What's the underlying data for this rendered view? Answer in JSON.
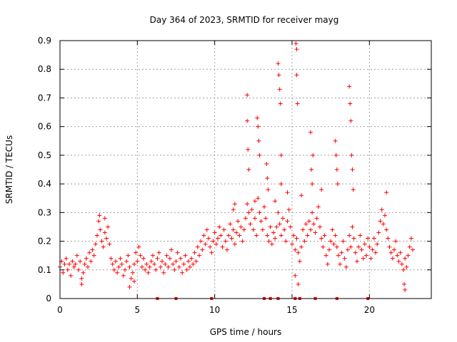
{
  "chart_data": {
    "type": "scatter",
    "title": "Day 364 of 2023, SRMTID for receiver mayg",
    "xlabel": "GPS time / hours",
    "ylabel": "SRMTID / TECUs",
    "xlim": [
      0,
      24
    ],
    "ylim": [
      0,
      0.9
    ],
    "x_ticks": [
      0,
      5,
      10,
      15,
      20
    ],
    "y_ticks": [
      0,
      0.1,
      0.2,
      0.3,
      0.4,
      0.5,
      0.6,
      0.7,
      0.8,
      0.9
    ],
    "x_tick_labels": [
      "0",
      "5",
      "10",
      "15",
      "20"
    ],
    "y_tick_labels": [
      "0",
      "0.1",
      "0.2",
      "0.3",
      "0.4",
      "0.5",
      "0.6",
      "0.7",
      "0.8",
      "0.9"
    ],
    "grid": true,
    "marker": "+",
    "color": "#ff0000",
    "baseline_markers_x": [
      6.3,
      7.5,
      9.8,
      13.2,
      13.6,
      14.1,
      15.2,
      15.5,
      16.5,
      17.9,
      19.9
    ],
    "series": [
      {
        "name": "SRMTID",
        "points": [
          [
            0.0,
            0.11
          ],
          [
            0.1,
            0.13
          ],
          [
            0.2,
            0.09
          ],
          [
            0.3,
            0.12
          ],
          [
            0.4,
            0.14
          ],
          [
            0.5,
            0.1
          ],
          [
            0.6,
            0.12
          ],
          [
            0.7,
            0.08
          ],
          [
            0.8,
            0.13
          ],
          [
            0.9,
            0.11
          ],
          [
            1.0,
            0.12
          ],
          [
            1.1,
            0.15
          ],
          [
            1.2,
            0.1
          ],
          [
            1.3,
            0.13
          ],
          [
            1.4,
            0.07
          ],
          [
            1.5,
            0.09
          ],
          [
            1.6,
            0.12
          ],
          [
            1.7,
            0.14
          ],
          [
            1.8,
            0.11
          ],
          [
            1.9,
            0.16
          ],
          [
            2.0,
            0.13
          ],
          [
            2.1,
            0.17
          ],
          [
            2.2,
            0.15
          ],
          [
            2.3,
            0.19
          ],
          [
            2.4,
            0.22
          ],
          [
            2.5,
            0.27
          ],
          [
            2.6,
            0.24
          ],
          [
            2.7,
            0.2
          ],
          [
            2.8,
            0.18
          ],
          [
            2.9,
            0.23
          ],
          [
            3.0,
            0.21
          ],
          [
            3.1,
            0.25
          ],
          [
            3.2,
            0.19
          ],
          [
            3.3,
            0.14
          ],
          [
            3.4,
            0.12
          ],
          [
            3.5,
            0.1
          ],
          [
            3.6,
            0.13
          ],
          [
            3.7,
            0.09
          ],
          [
            3.8,
            0.11
          ],
          [
            3.9,
            0.14
          ],
          [
            4.0,
            0.12
          ],
          [
            4.1,
            0.08
          ],
          [
            4.2,
            0.1
          ],
          [
            4.3,
            0.13
          ],
          [
            4.4,
            0.15
          ],
          [
            4.5,
            0.11
          ],
          [
            4.6,
            0.07
          ],
          [
            4.7,
            0.09
          ],
          [
            4.8,
            0.12
          ],
          [
            4.9,
            0.16
          ],
          [
            5.0,
            0.13
          ],
          [
            5.1,
            0.18
          ],
          [
            5.2,
            0.15
          ],
          [
            5.3,
            0.11
          ],
          [
            5.4,
            0.14
          ],
          [
            5.5,
            0.1
          ],
          [
            5.6,
            0.12
          ],
          [
            5.7,
            0.09
          ],
          [
            5.8,
            0.11
          ],
          [
            5.9,
            0.13
          ],
          [
            6.0,
            0.15
          ],
          [
            6.1,
            0.12
          ],
          [
            6.2,
            0.1
          ],
          [
            6.3,
            0.14
          ],
          [
            6.4,
            0.16
          ],
          [
            6.5,
            0.11
          ],
          [
            6.6,
            0.13
          ],
          [
            6.7,
            0.09
          ],
          [
            6.8,
            0.12
          ],
          [
            6.9,
            0.15
          ],
          [
            7.0,
            0.11
          ],
          [
            7.1,
            0.14
          ],
          [
            7.2,
            0.17
          ],
          [
            7.3,
            0.12
          ],
          [
            7.4,
            0.1
          ],
          [
            7.5,
            0.13
          ],
          [
            7.6,
            0.16
          ],
          [
            7.7,
            0.11
          ],
          [
            7.8,
            0.14
          ],
          [
            7.9,
            0.09
          ],
          [
            8.0,
            0.12
          ],
          [
            8.1,
            0.15
          ],
          [
            8.2,
            0.1
          ],
          [
            8.3,
            0.13
          ],
          [
            8.4,
            0.11
          ],
          [
            8.5,
            0.14
          ],
          [
            8.6,
            0.12
          ],
          [
            8.7,
            0.16
          ],
          [
            8.8,
            0.13
          ],
          [
            8.9,
            0.18
          ],
          [
            9.0,
            0.15
          ],
          [
            9.1,
            0.2
          ],
          [
            9.2,
            0.17
          ],
          [
            9.3,
            0.22
          ],
          [
            9.4,
            0.19
          ],
          [
            9.5,
            0.24
          ],
          [
            9.6,
            0.21
          ],
          [
            9.7,
            0.18
          ],
          [
            9.8,
            0.16
          ],
          [
            9.9,
            0.2
          ],
          [
            10.0,
            0.23
          ],
          [
            10.1,
            0.19
          ],
          [
            10.2,
            0.21
          ],
          [
            10.3,
            0.25
          ],
          [
            10.4,
            0.22
          ],
          [
            10.5,
            0.18
          ],
          [
            10.6,
            0.24
          ],
          [
            10.7,
            0.2
          ],
          [
            10.8,
            0.17
          ],
          [
            10.9,
            0.22
          ],
          [
            11.0,
            0.26
          ],
          [
            11.1,
            0.21
          ],
          [
            11.2,
            0.24
          ],
          [
            11.3,
            0.19
          ],
          [
            11.4,
            0.23
          ],
          [
            11.5,
            0.27
          ],
          [
            11.6,
            0.22
          ],
          [
            11.7,
            0.25
          ],
          [
            11.8,
            0.2
          ],
          [
            11.9,
            0.24
          ],
          [
            12.0,
            0.28
          ],
          [
            12.1,
            0.33
          ],
          [
            12.2,
            0.3
          ],
          [
            12.3,
            0.26
          ],
          [
            12.4,
            0.31
          ],
          [
            12.5,
            0.24
          ],
          [
            12.6,
            0.28
          ],
          [
            12.7,
            0.22
          ],
          [
            12.8,
            0.35
          ],
          [
            12.9,
            0.3
          ],
          [
            13.0,
            0.27
          ],
          [
            13.1,
            0.24
          ],
          [
            13.2,
            0.32
          ],
          [
            13.3,
            0.28
          ],
          [
            13.4,
            0.22
          ],
          [
            13.5,
            0.2
          ],
          [
            13.6,
            0.25
          ],
          [
            13.7,
            0.19
          ],
          [
            13.8,
            0.23
          ],
          [
            13.9,
            0.21
          ],
          [
            14.0,
            0.25
          ],
          [
            14.1,
            0.3
          ],
          [
            14.2,
            0.26
          ],
          [
            14.3,
            0.22
          ],
          [
            14.4,
            0.28
          ],
          [
            14.5,
            0.24
          ],
          [
            14.6,
            0.2
          ],
          [
            14.7,
            0.27
          ],
          [
            14.8,
            0.31
          ],
          [
            14.9,
            0.25
          ],
          [
            15.0,
            0.19
          ],
          [
            15.1,
            0.22
          ],
          [
            15.2,
            0.17
          ],
          [
            15.3,
            0.21
          ],
          [
            15.4,
            0.16
          ],
          [
            15.5,
            0.13
          ],
          [
            15.6,
            0.18
          ],
          [
            15.7,
            0.24
          ],
          [
            15.8,
            0.2
          ],
          [
            15.9,
            0.26
          ],
          [
            16.0,
            0.22
          ],
          [
            16.1,
            0.27
          ],
          [
            16.2,
            0.24
          ],
          [
            16.3,
            0.3
          ],
          [
            16.4,
            0.26
          ],
          [
            16.5,
            0.23
          ],
          [
            16.6,
            0.28
          ],
          [
            16.7,
            0.32
          ],
          [
            16.8,
            0.25
          ],
          [
            16.9,
            0.21
          ],
          [
            17.0,
            0.18
          ],
          [
            17.1,
            0.22
          ],
          [
            17.2,
            0.15
          ],
          [
            17.3,
            0.12
          ],
          [
            17.4,
            0.17
          ],
          [
            17.5,
            0.2
          ],
          [
            17.6,
            0.24
          ],
          [
            17.7,
            0.19
          ],
          [
            17.8,
            0.22
          ],
          [
            17.9,
            0.18
          ],
          [
            18.0,
            0.15
          ],
          [
            18.1,
            0.12
          ],
          [
            18.2,
            0.16
          ],
          [
            18.3,
            0.2
          ],
          [
            18.4,
            0.14
          ],
          [
            18.5,
            0.11
          ],
          [
            18.6,
            0.17
          ],
          [
            18.7,
            0.22
          ],
          [
            18.8,
            0.18
          ],
          [
            18.9,
            0.25
          ],
          [
            19.0,
            0.21
          ],
          [
            19.1,
            0.16
          ],
          [
            19.2,
            0.13
          ],
          [
            19.3,
            0.18
          ],
          [
            19.4,
            0.22
          ],
          [
            19.5,
            0.17
          ],
          [
            19.6,
            0.14
          ],
          [
            19.7,
            0.19
          ],
          [
            19.8,
            0.15
          ],
          [
            19.9,
            0.21
          ],
          [
            20.0,
            0.18
          ],
          [
            20.1,
            0.14
          ],
          [
            20.2,
            0.17
          ],
          [
            20.3,
            0.21
          ],
          [
            20.4,
            0.16
          ],
          [
            20.5,
            0.19
          ],
          [
            20.6,
            0.23
          ],
          [
            20.7,
            0.27
          ],
          [
            20.8,
            0.31
          ],
          [
            20.9,
            0.26
          ],
          [
            21.0,
            0.29
          ],
          [
            21.1,
            0.24
          ],
          [
            21.2,
            0.21
          ],
          [
            21.3,
            0.18
          ],
          [
            21.4,
            0.16
          ],
          [
            21.5,
            0.14
          ],
          [
            21.6,
            0.17
          ],
          [
            21.7,
            0.2
          ],
          [
            21.8,
            0.15
          ],
          [
            21.9,
            0.13
          ],
          [
            22.0,
            0.16
          ],
          [
            22.1,
            0.12
          ],
          [
            22.2,
            0.1
          ],
          [
            22.3,
            0.14
          ],
          [
            22.4,
            0.11
          ],
          [
            22.5,
            0.15
          ],
          [
            22.6,
            0.18
          ],
          [
            22.7,
            0.21
          ],
          [
            22.8,
            0.17
          ],
          [
            2.55,
            0.29
          ],
          [
            2.9,
            0.28
          ],
          [
            12.1,
            0.71
          ],
          [
            12.1,
            0.62
          ],
          [
            12.15,
            0.52
          ],
          [
            12.2,
            0.45
          ],
          [
            12.6,
            0.34
          ],
          [
            12.75,
            0.63
          ],
          [
            12.8,
            0.6
          ],
          [
            12.85,
            0.55
          ],
          [
            12.9,
            0.5
          ],
          [
            13.35,
            0.47
          ],
          [
            13.4,
            0.42
          ],
          [
            13.45,
            0.38
          ],
          [
            14.1,
            0.82
          ],
          [
            14.15,
            0.78
          ],
          [
            14.2,
            0.73
          ],
          [
            14.25,
            0.68
          ],
          [
            14.3,
            0.5
          ],
          [
            14.3,
            0.4
          ],
          [
            15.25,
            0.89
          ],
          [
            15.3,
            0.87
          ],
          [
            15.3,
            0.78
          ],
          [
            15.35,
            0.68
          ],
          [
            15.6,
            0.36
          ],
          [
            16.2,
            0.58
          ],
          [
            16.25,
            0.45
          ],
          [
            16.3,
            0.4
          ],
          [
            16.35,
            0.5
          ],
          [
            16.9,
            0.38
          ],
          [
            17.8,
            0.55
          ],
          [
            17.85,
            0.5
          ],
          [
            17.9,
            0.45
          ],
          [
            17.95,
            0.4
          ],
          [
            18.7,
            0.74
          ],
          [
            18.75,
            0.68
          ],
          [
            18.8,
            0.62
          ],
          [
            18.85,
            0.5
          ],
          [
            18.9,
            0.45
          ],
          [
            18.95,
            0.38
          ],
          [
            21.1,
            0.37
          ],
          [
            22.25,
            0.05
          ],
          [
            22.3,
            0.03
          ],
          [
            11.2,
            0.31
          ],
          [
            11.3,
            0.33
          ],
          [
            13.9,
            0.34
          ],
          [
            14.7,
            0.37
          ],
          [
            15.2,
            0.08
          ],
          [
            15.4,
            0.05
          ],
          [
            4.5,
            0.04
          ],
          [
            4.8,
            0.06
          ],
          [
            1.4,
            0.05
          ]
        ]
      }
    ]
  }
}
